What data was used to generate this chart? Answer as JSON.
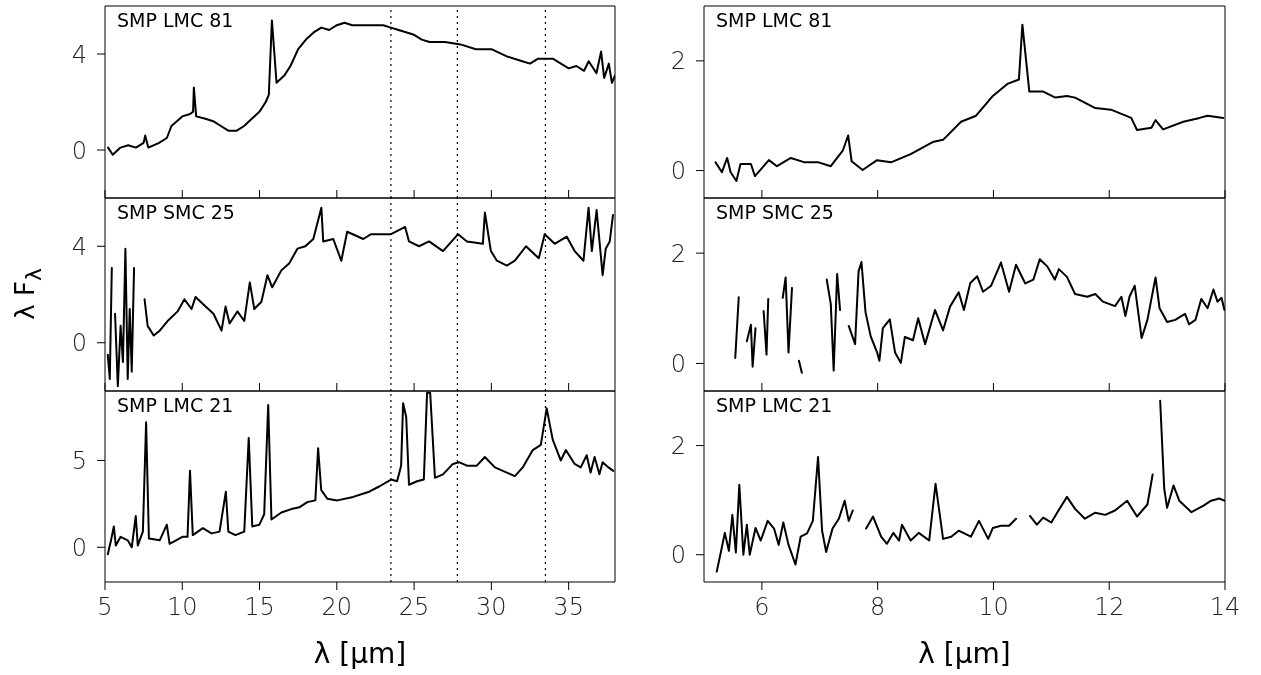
{
  "chart_data": [
    {
      "type": "line",
      "title": "SMP LMC 81",
      "xlim": [
        5,
        38
      ],
      "xticks": [
        5,
        10,
        15,
        20,
        25,
        30,
        35
      ],
      "ylim": [
        -2,
        6
      ],
      "yticks": [
        0,
        4
      ],
      "tick_labels": "y",
      "ref_lines": [
        {
          "axis": "x",
          "value": 23.5,
          "line_style": "dotted",
          "color": "#000000"
        },
        {
          "axis": "x",
          "value": 27.8,
          "line_style": "dotted",
          "color": "#000000"
        },
        {
          "axis": "x",
          "value": 33.5,
          "line_style": "dotted",
          "color": "#000000"
        }
      ],
      "series": [
        {
          "color": "#000000",
          "x": [
            5.2,
            5.5,
            6,
            6.5,
            7,
            7.5,
            7.6,
            7.8,
            8.5,
            9,
            9.3,
            10,
            10.5,
            10.7,
            10.75,
            10.9,
            11.5,
            12,
            12.5,
            13,
            13.5,
            14,
            14.5,
            15,
            15.4,
            15.6,
            15.8,
            16.1,
            16.6,
            17,
            17.5,
            18,
            18.5,
            19,
            19.5,
            20,
            20.5,
            21,
            22,
            23,
            23.5,
            24,
            25,
            25.5,
            26,
            27,
            28,
            29,
            30,
            31,
            32,
            32.5,
            33,
            34,
            35,
            35.5,
            36,
            36.3,
            36.8,
            37.1,
            37.3,
            37.6,
            37.8,
            38
          ],
          "values": [
            0.1,
            -0.2,
            0.1,
            0.2,
            0.1,
            0.3,
            0.6,
            0.1,
            0.3,
            0.5,
            1.0,
            1.4,
            1.5,
            1.6,
            2.6,
            1.4,
            1.3,
            1.2,
            1.0,
            0.8,
            0.8,
            1.0,
            1.3,
            1.6,
            2.0,
            2.3,
            5.4,
            2.8,
            3.1,
            3.5,
            4.2,
            4.6,
            4.9,
            5.1,
            5.0,
            5.2,
            5.3,
            5.2,
            5.2,
            5.2,
            5.1,
            5.0,
            4.8,
            4.6,
            4.5,
            4.5,
            4.4,
            4.2,
            4.2,
            3.9,
            3.7,
            3.6,
            3.8,
            3.8,
            3.4,
            3.5,
            3.3,
            3.7,
            3.2,
            4.1,
            3.0,
            3.6,
            2.8,
            3.1
          ]
        }
      ]
    },
    {
      "type": "line",
      "title": "SMP LMC 81",
      "xlim": [
        5,
        14
      ],
      "xticks": [
        6,
        8,
        10,
        12,
        14
      ],
      "ylim": [
        -0.5,
        3
      ],
      "yticks": [
        0,
        2
      ],
      "tick_labels": "y",
      "series": [
        {
          "color": "#000000",
          "x": [
            5.2,
            5.31,
            5.4,
            5.46,
            5.56,
            5.63,
            5.81,
            5.88,
            6.12,
            6.26,
            6.5,
            6.74,
            6.98,
            7.19,
            7.4,
            7.49,
            7.55,
            7.74,
            7.99,
            8.23,
            8.57,
            8.95,
            9.13,
            9.44,
            9.7,
            9.99,
            10.24,
            10.44,
            10.5,
            10.62,
            10.86,
            11.07,
            11.27,
            11.41,
            11.76,
            12.03,
            12.38,
            12.48,
            12.73,
            12.8,
            12.93,
            13.28,
            13.56,
            13.7,
            13.97
          ],
          "values": [
            0.15,
            -0.03,
            0.23,
            -0.03,
            -0.19,
            0.12,
            0.12,
            -0.1,
            0.19,
            0.08,
            0.23,
            0.15,
            0.15,
            0.08,
            0.37,
            0.64,
            0.17,
            0.01,
            0.19,
            0.15,
            0.3,
            0.52,
            0.56,
            0.89,
            1.0,
            1.36,
            1.58,
            1.66,
            2.66,
            1.44,
            1.44,
            1.33,
            1.36,
            1.33,
            1.14,
            1.11,
            0.96,
            0.74,
            0.78,
            0.92,
            0.75,
            0.89,
            0.96,
            1.0,
            0.96
          ]
        }
      ]
    },
    {
      "type": "line",
      "title": "SMP SMC 25",
      "ylabel": "λ F$_{λ}$",
      "xlim": [
        5,
        38
      ],
      "xticks": [
        5,
        10,
        15,
        20,
        25,
        30,
        35
      ],
      "ylim": [
        -2,
        6
      ],
      "yticks": [
        0,
        4
      ],
      "tick_labels": "y",
      "ref_lines": [
        {
          "axis": "x",
          "value": 23.5,
          "line_style": "dotted",
          "color": "#000000"
        },
        {
          "axis": "x",
          "value": 27.8,
          "line_style": "dotted",
          "color": "#000000"
        },
        {
          "axis": "x",
          "value": 33.5,
          "line_style": "dotted",
          "color": "#000000"
        }
      ],
      "series": [
        {
          "color": "#000000",
          "x": [
            5.18,
            5.31,
            5.44,
            5.54,
            5.65,
            5.83,
            6.01,
            6.16,
            6.32,
            6.47,
            6.6,
            6.73,
            6.88,
            7.04,
            7.19,
            7.38,
            7.56,
            7.76,
            8.15,
            8.54,
            9.05,
            9.7,
            10.14,
            10.6,
            10.86,
            11.51,
            12.02,
            12.54,
            12.8,
            13.06,
            13.57,
            14.01,
            14.37,
            14.66,
            15.12,
            15.51,
            15.82,
            16.41,
            16.93,
            17.45,
            17.96,
            18.48,
            19.0,
            19.12,
            19.77,
            20.29,
            20.67,
            21.71,
            22.22,
            22.87,
            23.51,
            24.42,
            24.67,
            25.32,
            25.97,
            26.87,
            27.85,
            28.42,
            29.45,
            29.58,
            29.97,
            30.36,
            31.0,
            31.52,
            32.24,
            33.07,
            33.45,
            34.1,
            34.87,
            35.39,
            35.96,
            36.29,
            36.5,
            36.81,
            37.2,
            37.4,
            37.66,
            37.87
          ],
          "values": [
            -0.5,
            -1.5,
            3.1,
            null,
            1.2,
            -1.8,
            0.7,
            -0.8,
            3.9,
            -1.5,
            1.4,
            -1.2,
            3.1,
            null,
            null,
            null,
            1.8,
            0.7,
            0.3,
            0.5,
            0.9,
            1.3,
            1.8,
            1.4,
            1.9,
            1.5,
            1.2,
            0.5,
            1.5,
            0.8,
            1.3,
            0.9,
            2.5,
            1.4,
            1.7,
            2.8,
            2.3,
            3.0,
            3.3,
            3.9,
            4.0,
            4.3,
            5.6,
            4.2,
            4.3,
            3.4,
            4.6,
            4.3,
            4.5,
            4.5,
            4.5,
            4.8,
            4.2,
            4.0,
            4.2,
            3.8,
            4.5,
            4.2,
            4.1,
            5.4,
            3.8,
            3.4,
            3.2,
            3.4,
            4.0,
            3.5,
            4.5,
            4.1,
            4.4,
            3.8,
            3.4,
            5.6,
            3.8,
            5.5,
            2.8,
            3.9,
            4.2,
            5.3
          ]
        }
      ]
    },
    {
      "type": "line",
      "title": "SMP SMC 25",
      "xlim": [
        5,
        14
      ],
      "xticks": [
        6,
        8,
        10,
        12,
        14
      ],
      "ylim": [
        -0.5,
        3
      ],
      "yticks": [
        0,
        2
      ],
      "tick_labels": "y",
      "series": [
        {
          "color": "#000000",
          "x": [
            5.54,
            5.6,
            5.67,
            5.74,
            5.81,
            5.84,
            5.89,
            5.93,
            6.03,
            6.08,
            6.11,
            6.17,
            6.26,
            6.3,
            6.36,
            6.41,
            6.46,
            6.52,
            6.57,
            6.64,
            6.69,
            6.78,
            6.88,
            6.95,
            6.98,
            7.05,
            7.12,
            7.19,
            7.24,
            7.3,
            7.35,
            7.43,
            7.5,
            7.61,
            7.67,
            7.72,
            7.79,
            7.88,
            7.99,
            8.03,
            8.09,
            8.21,
            8.3,
            8.4,
            8.47,
            8.61,
            8.7,
            8.82,
            8.99,
            9.13,
            9.25,
            9.4,
            9.49,
            9.6,
            9.72,
            9.82,
            9.96,
            10.13,
            10.27,
            10.39,
            10.55,
            10.69,
            10.8,
            10.93,
            11.06,
            11.13,
            11.27,
            11.41,
            11.62,
            11.76,
            11.89,
            12.1,
            12.21,
            12.28,
            12.35,
            12.44,
            12.56,
            12.66,
            12.8,
            12.87,
            13.0,
            13.14,
            13.31,
            13.38,
            13.49,
            13.59,
            13.7,
            13.8,
            13.87,
            13.94,
            13.99
          ],
          "values": [
            0.1,
            1.2,
            null,
            0.4,
            0.7,
            -0.06,
            0.64,
            null,
            0.95,
            0.16,
            1.17,
            null,
            null,
            null,
            1.19,
            1.56,
            0.2,
            1.37,
            null,
            0.05,
            -0.17,
            null,
            null,
            null,
            null,
            null,
            1.52,
            1.08,
            -0.13,
            1.62,
            0.97,
            null,
            0.68,
            0.35,
            1.67,
            1.84,
            0.93,
            0.49,
            0.2,
            0.05,
            0.64,
            0.8,
            0.2,
            0.01,
            0.48,
            0.42,
            0.82,
            0.35,
            0.97,
            0.6,
            1.03,
            1.29,
            0.97,
            1.46,
            1.58,
            1.3,
            1.41,
            1.83,
            1.3,
            1.79,
            1.45,
            1.52,
            1.89,
            1.76,
            1.52,
            1.71,
            1.57,
            1.26,
            1.21,
            1.26,
            1.12,
            1.04,
            1.21,
            0.86,
            1.21,
            1.41,
            0.46,
            0.79,
            1.56,
            1.0,
            0.75,
            0.79,
            0.9,
            0.71,
            0.79,
            1.17,
            1.0,
            1.34,
            1.12,
            1.19,
            0.97
          ]
        }
      ]
    },
    {
      "type": "line",
      "title": "SMP LMC 21",
      "xlabel": "λ [μm]",
      "xlim": [
        5,
        38
      ],
      "xticks": [
        5,
        10,
        15,
        20,
        25,
        30,
        35
      ],
      "ylim": [
        -2,
        9
      ],
      "yticks": [
        0,
        5
      ],
      "ref_lines": [
        {
          "axis": "x",
          "value": 23.5,
          "line_style": "dotted",
          "color": "#000000"
        },
        {
          "axis": "x",
          "value": 27.8,
          "line_style": "dotted",
          "color": "#000000"
        },
        {
          "axis": "x",
          "value": 33.5,
          "line_style": "dotted",
          "color": "#000000"
        }
      ],
      "series": [
        {
          "color": "#000000",
          "x": [
            5.18,
            5.39,
            5.57,
            5.7,
            6.01,
            6.47,
            6.73,
            6.99,
            7.12,
            7.45,
            7.66,
            7.84,
            8.54,
            9.0,
            9.18,
            10.01,
            10.34,
            10.5,
            10.68,
            11.33,
            11.89,
            12.41,
            12.82,
            12.98,
            13.44,
            14.01,
            14.3,
            14.53,
            14.99,
            15.3,
            15.56,
            15.77,
            16.41,
            17.06,
            17.57,
            18.09,
            18.61,
            18.79,
            18.99,
            19.38,
            20.03,
            21.06,
            22.09,
            22.74,
            23.51,
            23.9,
            24.16,
            24.29,
            24.49,
            24.67,
            25.19,
            25.63,
            25.84,
            26.04,
            26.35,
            26.87,
            27.51,
            27.9,
            28.42,
            29.06,
            29.58,
            30.23,
            31.0,
            31.52,
            32.03,
            32.68,
            33.2,
            33.58,
            33.97,
            34.49,
            34.82,
            35.39,
            35.78,
            36.17,
            36.42,
            36.68,
            36.99,
            37.2,
            37.58,
            37.89
          ],
          "values": [
            -0.4,
            0.4,
            1.2,
            0.1,
            0.6,
            0.4,
            0,
            1.8,
            0.1,
            0.9,
            7.2,
            0.5,
            0.4,
            1.3,
            0.2,
            0.6,
            0.6,
            4.4,
            0.7,
            1.1,
            0.8,
            0.9,
            3.2,
            0.9,
            0.7,
            0.9,
            6.3,
            1.2,
            1.3,
            1.9,
            8.2,
            1.6,
            2.0,
            2.2,
            2.3,
            2.6,
            2.7,
            5.7,
            3.3,
            2.8,
            2.7,
            2.9,
            3.2,
            3.5,
            3.9,
            3.8,
            4.7,
            8.3,
            7.5,
            3.6,
            3.8,
            3.9,
            8.9,
            8.9,
            4.0,
            4.2,
            4.8,
            4.9,
            4.7,
            4.7,
            5.2,
            4.6,
            4.3,
            4.1,
            4.6,
            5.6,
            5.9,
            8.0,
            6.2,
            5.0,
            5.6,
            4.8,
            4.6,
            5.3,
            4.3,
            5.2,
            4.2,
            4.9,
            4.6,
            4.4
          ]
        }
      ]
    },
    {
      "type": "line",
      "title": "SMP LMC 21",
      "xlabel": "λ [μm]",
      "xlim": [
        5,
        14
      ],
      "xticks": [
        6,
        8,
        10,
        12,
        14
      ],
      "ylim": [
        -0.5,
        3
      ],
      "yticks": [
        0,
        2
      ],
      "series": [
        {
          "color": "#000000",
          "x": [
            5.22,
            5.29,
            5.36,
            5.43,
            5.49,
            5.55,
            5.61,
            5.68,
            5.74,
            5.79,
            5.89,
            5.98,
            6.1,
            6.21,
            6.29,
            6.37,
            6.46,
            6.58,
            6.67,
            6.78,
            6.88,
            6.97,
            7.04,
            7.11,
            7.22,
            7.33,
            7.43,
            7.5,
            7.57,
            7.64,
            7.72,
            7.8,
            7.92,
            8.06,
            8.16,
            8.27,
            8.37,
            8.42,
            8.57,
            8.71,
            8.89,
            9.0,
            9.13,
            9.27,
            9.4,
            9.61,
            9.75,
            9.91,
            9.99,
            10.13,
            10.27,
            10.39,
            10.48,
            10.55,
            10.63,
            10.75,
            10.86,
            11.0,
            11.1,
            11.27,
            11.41,
            11.58,
            11.76,
            11.93,
            12.1,
            12.31,
            12.48,
            12.66,
            12.75,
            12.81,
            12.88,
            12.95,
            13.0,
            13.11,
            13.21,
            13.42,
            13.63,
            13.76,
            13.9,
            13.99
          ],
          "values": [
            -0.31,
            0.04,
            0.4,
            0.07,
            0.73,
            0.04,
            1.28,
            0,
            0.55,
            0,
            0.49,
            0.26,
            0.62,
            0.48,
            0.18,
            0.59,
            0.18,
            -0.18,
            0.33,
            0.39,
            0.62,
            1.79,
            0.44,
            0.05,
            0.48,
            0.66,
            0.99,
            0.62,
            0.81,
            null,
            null,
            0.48,
            0.7,
            0.33,
            0.2,
            0.4,
            0.26,
            0.55,
            0.26,
            0.4,
            0.26,
            1.3,
            0.29,
            0.33,
            0.44,
            0.33,
            0.62,
            0.29,
            0.49,
            0.53,
            0.53,
            0.66,
            null,
            null,
            0.71,
            0.55,
            0.68,
            0.59,
            0.77,
            1.06,
            0.84,
            0.66,
            0.77,
            0.73,
            0.81,
            0.99,
            0.7,
            0.92,
            1.47,
            null,
            2.82,
            1.21,
            0.86,
            1.27,
            0.99,
            0.78,
            0.9,
            0.99,
            1.03,
            0.99
          ]
        }
      ]
    }
  ]
}
